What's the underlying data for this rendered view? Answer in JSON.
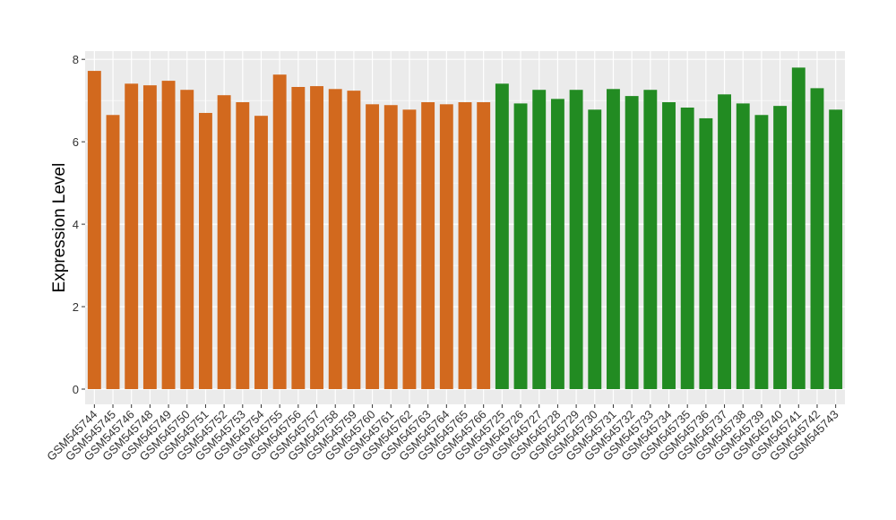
{
  "chart_data": {
    "type": "bar",
    "y_label": "Expression Level",
    "categories": [
      "GSM545744",
      "GSM545745",
      "GSM545746",
      "GSM545748",
      "GSM545749",
      "GSM545750",
      "GSM545751",
      "GSM545752",
      "GSM545753",
      "GSM545754",
      "GSM545755",
      "GSM545756",
      "GSM545757",
      "GSM545758",
      "GSM545759",
      "GSM545760",
      "GSM545761",
      "GSM545762",
      "GSM545763",
      "GSM545764",
      "GSM545765",
      "GSM545766",
      "GSM545725",
      "GSM545726",
      "GSM545727",
      "GSM545728",
      "GSM545729",
      "GSM545730",
      "GSM545731",
      "GSM545732",
      "GSM545733",
      "GSM545734",
      "GSM545735",
      "GSM545736",
      "GSM545737",
      "GSM545738",
      "GSM545739",
      "GSM545740",
      "GSM545741",
      "GSM545742",
      "GSM545743"
    ],
    "values": [
      7.72,
      6.65,
      7.41,
      7.37,
      7.48,
      7.26,
      6.7,
      7.13,
      6.96,
      6.63,
      7.63,
      7.33,
      7.35,
      7.28,
      7.24,
      6.91,
      6.89,
      6.78,
      6.96,
      6.91,
      6.96,
      6.96,
      7.41,
      6.93,
      7.26,
      7.04,
      7.26,
      6.78,
      7.28,
      7.11,
      7.26,
      6.96,
      6.83,
      6.57,
      7.15,
      6.93,
      6.65,
      6.87,
      7.8,
      7.3,
      6.78
    ],
    "colors": [
      "#d2691e",
      "#d2691e",
      "#d2691e",
      "#d2691e",
      "#d2691e",
      "#d2691e",
      "#d2691e",
      "#d2691e",
      "#d2691e",
      "#d2691e",
      "#d2691e",
      "#d2691e",
      "#d2691e",
      "#d2691e",
      "#d2691e",
      "#d2691e",
      "#d2691e",
      "#d2691e",
      "#d2691e",
      "#d2691e",
      "#d2691e",
      "#d2691e",
      "#228b22",
      "#228b22",
      "#228b22",
      "#228b22",
      "#228b22",
      "#228b22",
      "#228b22",
      "#228b22",
      "#228b22",
      "#228b22",
      "#228b22",
      "#228b22",
      "#228b22",
      "#228b22",
      "#228b22",
      "#228b22",
      "#228b22",
      "#228b22",
      "#228b22"
    ],
    "ylim": [
      -0.37,
      8.2
    ],
    "yticks": [
      0,
      2,
      4,
      6,
      8
    ],
    "minor_yticks": [
      1,
      3,
      5,
      7
    ],
    "grid": true,
    "panel_color": "#ebebeb"
  }
}
